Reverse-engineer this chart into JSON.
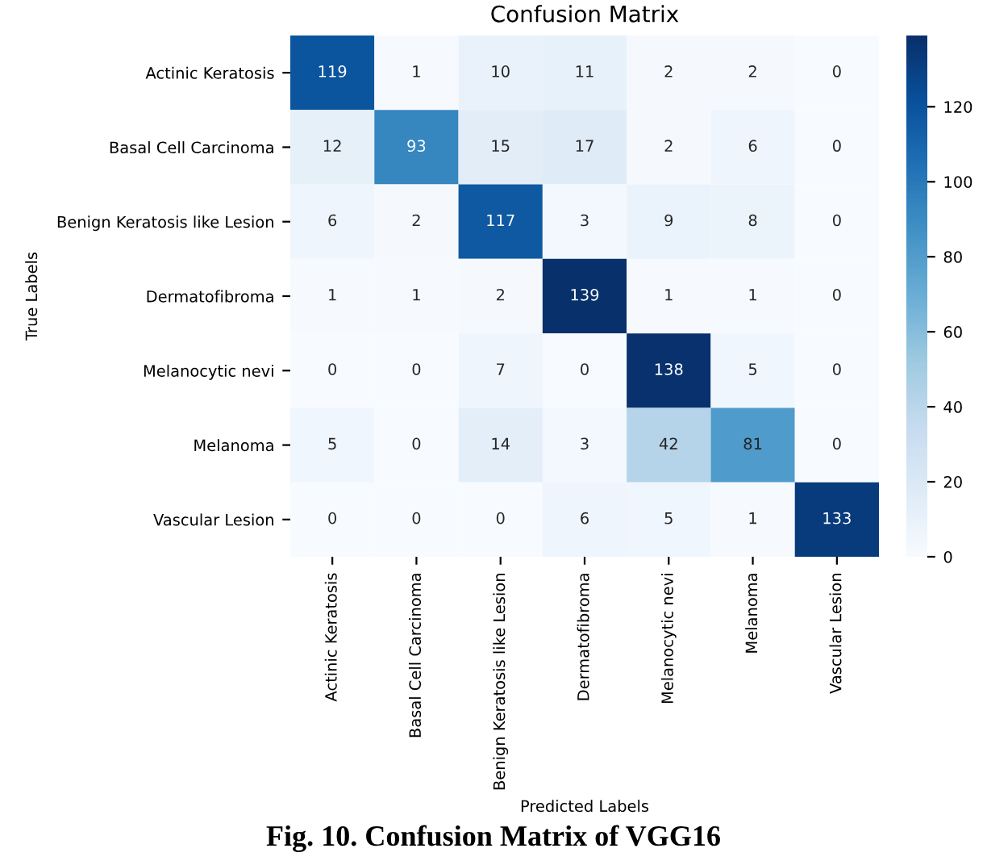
{
  "chart_data": {
    "type": "heatmap",
    "title": "Confusion Matrix",
    "xlabel": "Predicted Labels",
    "ylabel": "True Labels",
    "annotations": [
      "Fig. 10. Confusion Matrix of VGG16"
    ],
    "categories": [
      "Actinic Keratosis",
      "Basal Cell Carcinoma",
      "Benign Keratosis like Lesion",
      "Dermatofibroma",
      "Melanocytic nevi",
      "Melanoma",
      "Vascular Lesion"
    ],
    "y_categories": [
      "Actinic Keratosis",
      "Basal Cell Carcinoma",
      "Benign Keratosis like Lesion",
      "Dermatofibroma",
      "Melanocytic nevi",
      "Melanoma",
      "Vascular Lesion"
    ],
    "cells": [
      [
        119,
        1,
        10,
        11,
        2,
        2,
        0
      ],
      [
        12,
        93,
        15,
        17,
        2,
        6,
        0
      ],
      [
        6,
        2,
        117,
        3,
        9,
        8,
        0
      ],
      [
        1,
        1,
        2,
        139,
        1,
        1,
        0
      ],
      [
        0,
        0,
        7,
        0,
        138,
        5,
        0
      ],
      [
        5,
        0,
        14,
        3,
        42,
        81,
        0
      ],
      [
        0,
        0,
        0,
        6,
        5,
        1,
        133
      ]
    ],
    "data_labels": true,
    "clim": [
      0,
      139
    ],
    "cticks": [
      0,
      20,
      40,
      60,
      80,
      100,
      120
    ]
  }
}
